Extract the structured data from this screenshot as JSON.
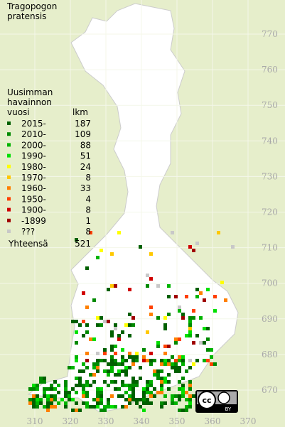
{
  "title": [
    "Tragopogon",
    "pratensis"
  ],
  "legend": {
    "heading": [
      "Uusimman",
      "havainnon",
      "vuosi"
    ],
    "count_heading": "lkm",
    "rows": [
      {
        "label": "2015-",
        "count": "187",
        "color": "#006000"
      },
      {
        "label": "2010-",
        "count": "109",
        "color": "#008a00"
      },
      {
        "label": "2000-",
        "count": "88",
        "color": "#00b400"
      },
      {
        "label": "1990-",
        "count": "51",
        "color": "#00e000"
      },
      {
        "label": "1980-",
        "count": "24",
        "color": "#ffff00"
      },
      {
        "label": "1970-",
        "count": "8",
        "color": "#ffc800"
      },
      {
        "label": "1960-",
        "count": "33",
        "color": "#ff8000"
      },
      {
        "label": "1950-",
        "count": "4",
        "color": "#ff4000"
      },
      {
        "label": "1900-",
        "count": "8",
        "color": "#d00000"
      },
      {
        "label": "-1899",
        "count": "1",
        "color": "#a00000"
      },
      {
        "label": "???",
        "count": "8",
        "color": "#c8c8c8"
      }
    ],
    "total_label": "Yhteensä",
    "total": "521"
  },
  "grid": {
    "y_labels": [
      "770",
      "760",
      "750",
      "740",
      "730",
      "720",
      "710",
      "700",
      "690",
      "680",
      "670"
    ],
    "x_labels": [
      "310",
      "320",
      "330",
      "340",
      "350",
      "360",
      "370"
    ]
  },
  "license": "BY"
}
